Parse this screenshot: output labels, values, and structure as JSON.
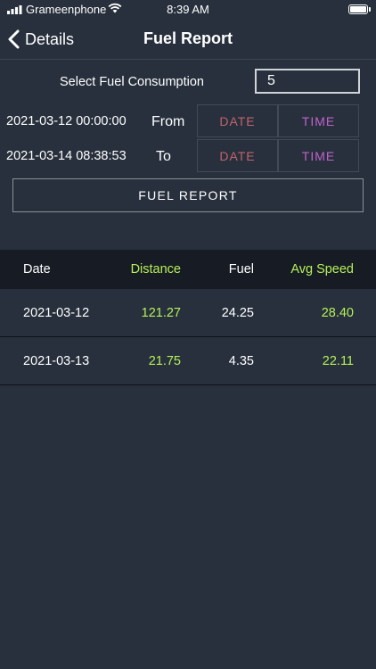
{
  "status_bar": {
    "carrier": "Grameenphone",
    "time": "8:39 AM"
  },
  "nav": {
    "back_label": "Details",
    "title": "Fuel Report"
  },
  "form": {
    "consumption_label": "Select Fuel Consumption",
    "consumption_value": "5",
    "from": {
      "datetime": "2021-03-12 00:00:00",
      "label": "From",
      "date_button": "DATE",
      "time_button": "TIME"
    },
    "to": {
      "datetime": "2021-03-14 08:38:53",
      "label": "To",
      "date_button": "DATE",
      "time_button": "TIME"
    },
    "report_button": "FUEL REPORT"
  },
  "table": {
    "headers": {
      "date": "Date",
      "distance": "Distance",
      "fuel": "Fuel",
      "avg_speed": "Avg Speed"
    },
    "rows": [
      {
        "date": "2021-03-12",
        "distance": "121.27",
        "fuel": "24.25",
        "avg_speed": "28.40"
      },
      {
        "date": "2021-03-13",
        "distance": "21.75",
        "fuel": "4.35",
        "avg_speed": "22.11"
      }
    ]
  },
  "colors": {
    "background": "#27303c",
    "header_background": "#171c24",
    "accent_green": "#b5f059",
    "date_button_text": "#c3636b",
    "time_button_text": "#c062cc"
  }
}
